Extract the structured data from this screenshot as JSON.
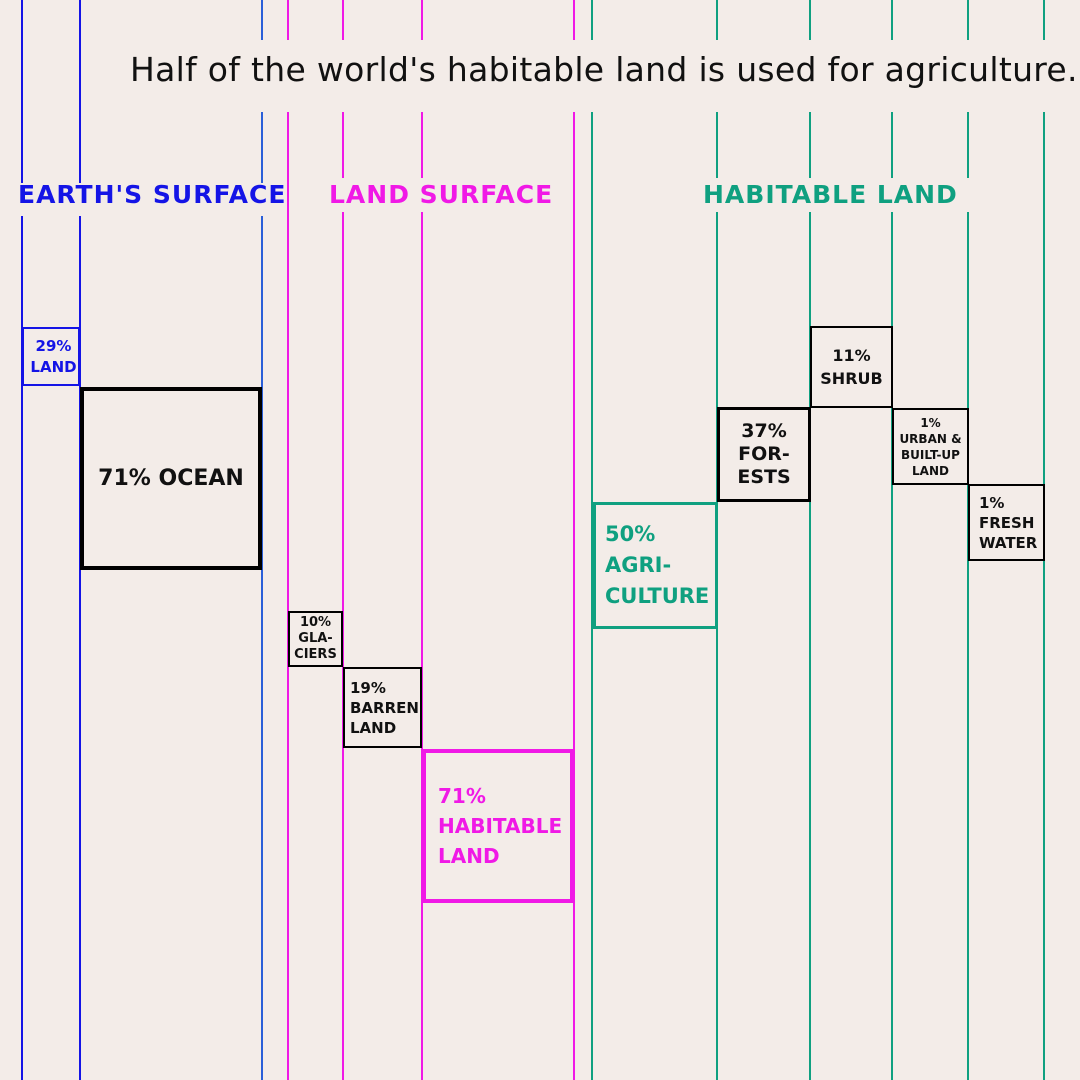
{
  "title": "Half of the world's habitable land is used for agriculture.",
  "colors": {
    "background": "#f3ece8",
    "earth": "#1414e6",
    "earth_divider": "#2a5fd8",
    "land": "#f019e6",
    "habitable": "#0fa080",
    "neutral": "#000000"
  },
  "chart_data": {
    "type": "waterfall",
    "title": "Half of the world's habitable land is used for agriculture.",
    "groups": [
      {
        "name": "EARTH'S SURFACE",
        "color_key": "earth",
        "segments": [
          {
            "label": "29% LAND",
            "percent": 29,
            "lines": [
              "29%",
              "LAND"
            ]
          },
          {
            "label": "71% OCEAN",
            "percent": 71,
            "lines": [
              "71% OCEAN"
            ]
          }
        ]
      },
      {
        "name": "LAND SURFACE",
        "color_key": "land",
        "segments": [
          {
            "label": "10% GLACIERS",
            "percent": 10,
            "lines": [
              "10%",
              "GLA-",
              "CIERS"
            ]
          },
          {
            "label": "19% BARREN LAND",
            "percent": 19,
            "lines": [
              "19%",
              "BARREN",
              "LAND"
            ]
          },
          {
            "label": "71% HABITABLE LAND",
            "percent": 71,
            "lines": [
              "71%",
              "HABITABLE",
              "LAND"
            ]
          }
        ]
      },
      {
        "name": "HABITABLE LAND",
        "color_key": "habitable",
        "segments": [
          {
            "label": "50% AGRICULTURE",
            "percent": 50,
            "lines": [
              "50%",
              "AGRI-",
              "CULTURE"
            ]
          },
          {
            "label": "37% FORESTS",
            "percent": 37,
            "lines": [
              "37%",
              "FOR-",
              "ESTS"
            ]
          },
          {
            "label": "11% SHRUB",
            "percent": 11,
            "lines": [
              "11%",
              "SHRUB"
            ]
          },
          {
            "label": "1% URBAN & BUILT-UP LAND",
            "percent": 1,
            "lines": [
              "1%",
              "URBAN &",
              "BUILT-UP",
              "LAND"
            ]
          },
          {
            "label": "1% FRESH WATER",
            "percent": 1,
            "lines": [
              "1%",
              "FRESH",
              "WATER"
            ]
          }
        ]
      }
    ]
  }
}
